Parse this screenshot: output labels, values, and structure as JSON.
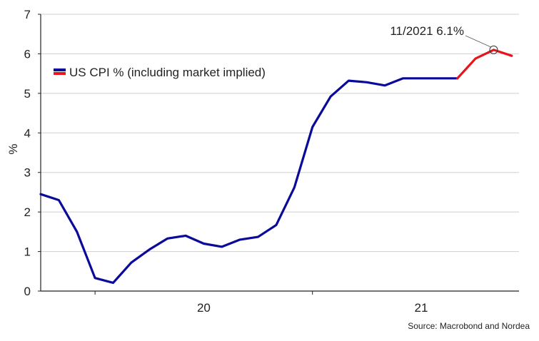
{
  "chart_data": {
    "type": "line",
    "title": "",
    "xlabel": "",
    "ylabel": "%",
    "ylim": [
      0,
      7
    ],
    "yticks": [
      0,
      1,
      2,
      3,
      4,
      5,
      6,
      7
    ],
    "x_tick_labels": [
      {
        "label": "20",
        "x": 2020.5
      },
      {
        "label": "21",
        "x": 2021.5
      }
    ],
    "x_range": [
      2019.75,
      2021.95
    ],
    "grid": "horizontal",
    "legend": {
      "position": "top-left",
      "entries": [
        "US CPI % (including market implied)"
      ]
    },
    "series": [
      {
        "name": "US CPI % (including market implied)",
        "color": "#0a0a9a",
        "x": [
          "10/2019",
          "11/2019",
          "12/2019",
          "01/2020",
          "02/2020",
          "03/2020",
          "04/2020",
          "05/2020",
          "06/2020",
          "07/2020",
          "08/2020",
          "09/2020",
          "10/2020",
          "11/2020",
          "12/2020",
          "01/2021",
          "02/2021",
          "03/2021",
          "04/2021",
          "05/2021",
          "06/2021",
          "07/2021",
          "08/2021",
          "09/2021"
        ],
        "values": [
          2.45,
          2.3,
          1.5,
          0.33,
          0.21,
          0.72,
          1.05,
          1.33,
          1.4,
          1.2,
          1.12,
          1.3,
          1.37,
          1.67,
          2.62,
          4.15,
          4.92,
          5.32,
          5.28,
          5.2,
          5.38,
          5.38,
          5.38,
          5.38
        ]
      },
      {
        "name": "",
        "color": "#e8141c",
        "x": [
          "09/2021",
          "10/2021",
          "11/2021",
          "12/2021"
        ],
        "values": [
          5.38,
          5.88,
          6.1,
          5.95
        ]
      }
    ],
    "annotation": {
      "text": "11/2021 6.1%",
      "x": "11/2021",
      "y": 6.1
    },
    "source": "Source: Macrobond and Nordea"
  }
}
